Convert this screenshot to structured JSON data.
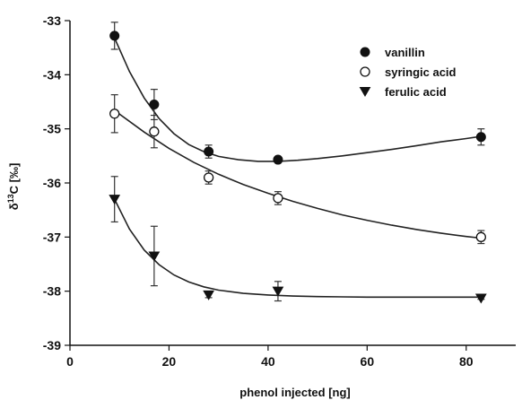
{
  "chart_data": {
    "type": "scatter",
    "title": "",
    "xlabel": "phenol injected [ng]",
    "ylabel": "δ13C [‰]",
    "ylabel_parts": {
      "symbol": "δ",
      "sup": "13",
      "rest": "C  [‰]"
    },
    "xlim": [
      0,
      90
    ],
    "ylim": [
      -39,
      -33
    ],
    "x_ticks": [
      0,
      20,
      40,
      60,
      80
    ],
    "y_ticks": [
      -33,
      -34,
      -35,
      -36,
      -37,
      -38,
      -39
    ],
    "x_tick_labels": [
      "0",
      "20",
      "40",
      "60",
      "80"
    ],
    "y_tick_labels": [
      "-33",
      "-34",
      "-35",
      "-36",
      "-37",
      "-38",
      "-39"
    ],
    "grid": false,
    "legend_position": "top-right",
    "series": [
      {
        "name": "vanillin",
        "marker": "filled-circle",
        "x": [
          9,
          17,
          28,
          42,
          83
        ],
        "y": [
          -33.28,
          -34.55,
          -35.42,
          -35.57,
          -35.15
        ],
        "err": [
          0.25,
          0.28,
          0.12,
          0.04,
          0.15
        ],
        "fit_x": [
          9,
          12,
          15,
          18,
          21,
          24,
          27,
          30,
          34,
          38,
          42,
          46,
          50,
          55,
          60,
          65,
          70,
          75,
          80,
          83
        ],
        "fit_y": [
          -33.32,
          -33.94,
          -34.43,
          -34.81,
          -35.09,
          -35.29,
          -35.42,
          -35.51,
          -35.57,
          -35.6,
          -35.6,
          -35.58,
          -35.55,
          -35.5,
          -35.44,
          -35.38,
          -35.31,
          -35.24,
          -35.18,
          -35.14
        ]
      },
      {
        "name": "syringic acid",
        "marker": "open-circle",
        "x": [
          9,
          17,
          28,
          42,
          83
        ],
        "y": [
          -34.72,
          -35.05,
          -35.9,
          -36.28,
          -37.0
        ],
        "err": [
          0.35,
          0.3,
          0.12,
          0.12,
          0.12
        ],
        "fit_x": [
          9,
          15,
          20,
          25,
          30,
          35,
          40,
          45,
          50,
          55,
          60,
          65,
          70,
          75,
          80,
          83
        ],
        "fit_y": [
          -34.66,
          -35.06,
          -35.36,
          -35.62,
          -35.84,
          -36.03,
          -36.19,
          -36.34,
          -36.47,
          -36.59,
          -36.69,
          -36.78,
          -36.86,
          -36.93,
          -36.99,
          -37.02
        ]
      },
      {
        "name": "ferulic acid",
        "marker": "filled-triangle-down",
        "x": [
          9,
          17,
          28,
          42,
          83
        ],
        "y": [
          -36.3,
          -37.35,
          -38.07,
          -38.0,
          -38.13
        ],
        "err": [
          0.42,
          0.55,
          0.05,
          0.18,
          0.02
        ],
        "fit_x": [
          9,
          12,
          15,
          18,
          21,
          24,
          27,
          30,
          35,
          40,
          45,
          50,
          60,
          70,
          83
        ],
        "fit_y": [
          -36.3,
          -36.85,
          -37.24,
          -37.51,
          -37.7,
          -37.83,
          -37.92,
          -37.98,
          -38.04,
          -38.07,
          -38.09,
          -38.1,
          -38.11,
          -38.11,
          -38.11
        ]
      }
    ]
  }
}
